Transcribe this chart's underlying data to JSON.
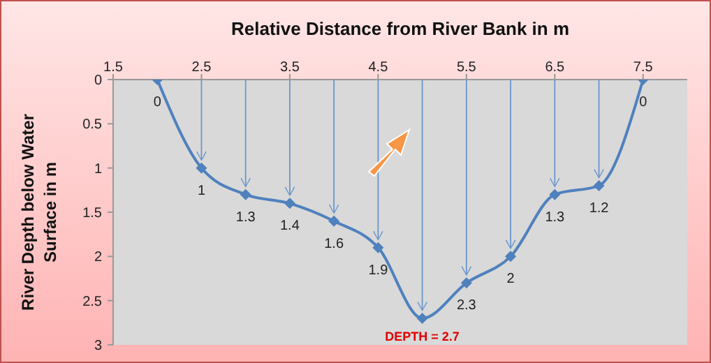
{
  "chart_data": {
    "type": "line",
    "xlabel": "Relative Distance from  River Bank  in m",
    "ylabel": "River Depth below Water Surface in m",
    "x": [
      2,
      2.5,
      3,
      3.5,
      4,
      4.5,
      5,
      5.5,
      6,
      6.5,
      7,
      7.5
    ],
    "series": [
      {
        "color": "#4f81bd",
        "values": [
          0,
          1,
          1.3,
          1.4,
          1.6,
          1.9,
          2.7,
          2.3,
          2,
          1.3,
          1.2,
          0
        ]
      }
    ],
    "xlim": [
      1.5,
      8
    ],
    "xticks": [
      1.5,
      2.5,
      3.5,
      4.5,
      5.5,
      6.5,
      7.5
    ],
    "ylim": [
      3,
      0
    ],
    "yticks": [
      0,
      0.5,
      1,
      1.5,
      2,
      2.5,
      3
    ],
    "value_labels": [
      "0",
      "1",
      "1.3",
      "1.4",
      "1.6",
      "1.9",
      null,
      "2.3",
      "2",
      "1.3",
      "1.2",
      "0"
    ],
    "grid": false,
    "marker": "diamond",
    "line_style": "solid",
    "annotations": [
      {
        "text": "DEPTH = 2.7",
        "x": 5,
        "y": 2.7
      }
    ]
  }
}
